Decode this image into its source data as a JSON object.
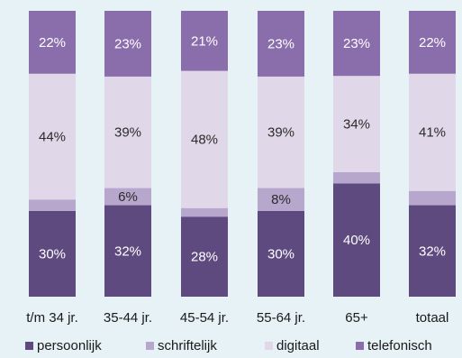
{
  "colors": {
    "background": "#e6f2f6",
    "persoonlijk": "#5e4a7e",
    "schriftelijk": "#b7a7cd",
    "digitaal": "#e0d8e8",
    "telefonisch": "#8a6dab",
    "label_light": "#ffffff",
    "label_dark": "#2b2b2b"
  },
  "chart_data": {
    "type": "bar",
    "stacked": true,
    "normalized": true,
    "title": "",
    "xlabel": "",
    "ylabel": "",
    "ylim": [
      0,
      100
    ],
    "grid": false,
    "legend_position": "bottom",
    "categories": [
      "t/m 34 jr.",
      "35-44 jr.",
      "45-54 jr.",
      "55-64 jr.",
      "65+",
      "totaal"
    ],
    "series": [
      {
        "name": "persoonlijk",
        "values": [
          30,
          32,
          28,
          30,
          40,
          32
        ],
        "labels": [
          "30%",
          "32%",
          "28%",
          "30%",
          "40%",
          "32%"
        ]
      },
      {
        "name": "schriftelijk",
        "values": [
          4,
          6,
          3,
          8,
          4,
          5
        ],
        "labels": [
          "4%",
          "6%",
          "3%",
          "8%",
          "4%",
          "5%"
        ]
      },
      {
        "name": "digitaal",
        "values": [
          44,
          39,
          48,
          39,
          34,
          41
        ],
        "labels": [
          "44%",
          "39%",
          "48%",
          "39%",
          "34%",
          "41%"
        ]
      },
      {
        "name": "telefonisch",
        "values": [
          22,
          23,
          21,
          23,
          23,
          22
        ],
        "labels": [
          "22%",
          "23%",
          "21%",
          "23%",
          "23%",
          "22%"
        ]
      }
    ]
  }
}
